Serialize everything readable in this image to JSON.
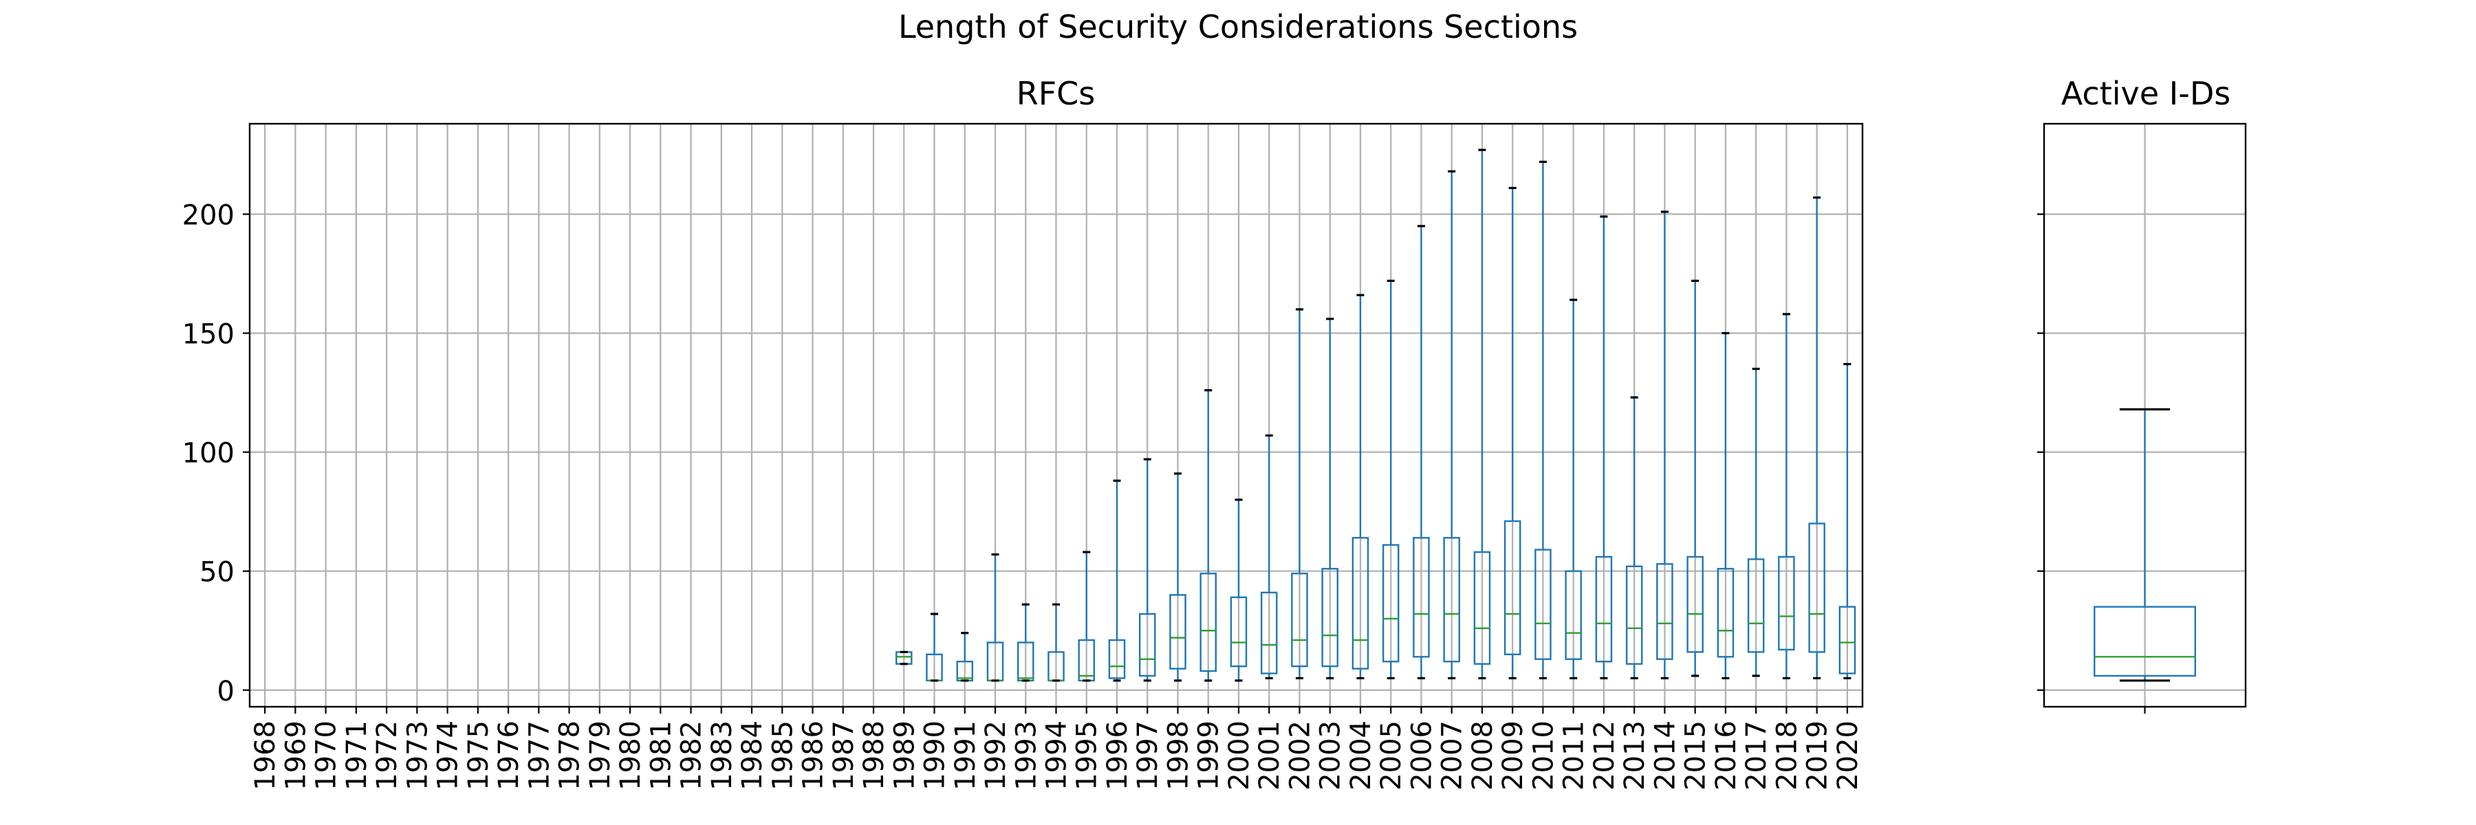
{
  "figure": {
    "suptitle": "Length of Security Considerations Sections"
  },
  "chart_data": [
    {
      "type": "boxplot",
      "title": "RFCs",
      "xlabel": "",
      "ylabel": "",
      "ylim": [
        -7,
        238
      ],
      "yticks": [
        0,
        50,
        100,
        150,
        200
      ],
      "grid": true,
      "categories": [
        "1968",
        "1969",
        "1970",
        "1971",
        "1972",
        "1973",
        "1974",
        "1975",
        "1976",
        "1977",
        "1978",
        "1979",
        "1980",
        "1981",
        "1982",
        "1983",
        "1984",
        "1985",
        "1986",
        "1987",
        "1988",
        "1989",
        "1990",
        "1991",
        "1992",
        "1993",
        "1994",
        "1995",
        "1996",
        "1997",
        "1998",
        "1999",
        "2000",
        "2001",
        "2002",
        "2003",
        "2004",
        "2005",
        "2006",
        "2007",
        "2008",
        "2009",
        "2010",
        "2011",
        "2012",
        "2013",
        "2014",
        "2015",
        "2016",
        "2017",
        "2018",
        "2019",
        "2020"
      ],
      "boxes": [
        null,
        null,
        null,
        null,
        null,
        null,
        null,
        null,
        null,
        null,
        null,
        null,
        null,
        null,
        null,
        null,
        null,
        null,
        null,
        null,
        null,
        {
          "whisker_low": 11,
          "q1": 11,
          "median": 14,
          "q3": 16,
          "whisker_high": 16
        },
        {
          "whisker_low": 4,
          "q1": 4,
          "median": 4,
          "q3": 15,
          "whisker_high": 32
        },
        {
          "whisker_low": 4,
          "q1": 4,
          "median": 5,
          "q3": 12,
          "whisker_high": 24
        },
        {
          "whisker_low": 4,
          "q1": 4,
          "median": 4,
          "q3": 20,
          "whisker_high": 57
        },
        {
          "whisker_low": 4,
          "q1": 4,
          "median": 5,
          "q3": 20,
          "whisker_high": 36
        },
        {
          "whisker_low": 4,
          "q1": 4,
          "median": 4,
          "q3": 16,
          "whisker_high": 36
        },
        {
          "whisker_low": 4,
          "q1": 4,
          "median": 6,
          "q3": 21,
          "whisker_high": 58
        },
        {
          "whisker_low": 4,
          "q1": 5,
          "median": 10,
          "q3": 21,
          "whisker_high": 88
        },
        {
          "whisker_low": 4,
          "q1": 6,
          "median": 13,
          "q3": 32,
          "whisker_high": 97
        },
        {
          "whisker_low": 4,
          "q1": 9,
          "median": 22,
          "q3": 40,
          "whisker_high": 91
        },
        {
          "whisker_low": 4,
          "q1": 8,
          "median": 25,
          "q3": 49,
          "whisker_high": 126
        },
        {
          "whisker_low": 4,
          "q1": 10,
          "median": 20,
          "q3": 39,
          "whisker_high": 80
        },
        {
          "whisker_low": 5,
          "q1": 7,
          "median": 19,
          "q3": 41,
          "whisker_high": 107
        },
        {
          "whisker_low": 5,
          "q1": 10,
          "median": 21,
          "q3": 49,
          "whisker_high": 160
        },
        {
          "whisker_low": 5,
          "q1": 10,
          "median": 23,
          "q3": 51,
          "whisker_high": 156
        },
        {
          "whisker_low": 5,
          "q1": 9,
          "median": 21,
          "q3": 64,
          "whisker_high": 166
        },
        {
          "whisker_low": 5,
          "q1": 12,
          "median": 30,
          "q3": 61,
          "whisker_high": 172
        },
        {
          "whisker_low": 5,
          "q1": 14,
          "median": 32,
          "q3": 64,
          "whisker_high": 195
        },
        {
          "whisker_low": 5,
          "q1": 12,
          "median": 32,
          "q3": 64,
          "whisker_high": 218
        },
        {
          "whisker_low": 5,
          "q1": 11,
          "median": 26,
          "q3": 58,
          "whisker_high": 227
        },
        {
          "whisker_low": 5,
          "q1": 15,
          "median": 32,
          "q3": 71,
          "whisker_high": 211
        },
        {
          "whisker_low": 5,
          "q1": 13,
          "median": 28,
          "q3": 59,
          "whisker_high": 222
        },
        {
          "whisker_low": 5,
          "q1": 13,
          "median": 24,
          "q3": 50,
          "whisker_high": 164
        },
        {
          "whisker_low": 5,
          "q1": 12,
          "median": 28,
          "q3": 56,
          "whisker_high": 199
        },
        {
          "whisker_low": 5,
          "q1": 11,
          "median": 26,
          "q3": 52,
          "whisker_high": 123
        },
        {
          "whisker_low": 5,
          "q1": 13,
          "median": 28,
          "q3": 53,
          "whisker_high": 201
        },
        {
          "whisker_low": 6,
          "q1": 16,
          "median": 32,
          "q3": 56,
          "whisker_high": 172
        },
        {
          "whisker_low": 5,
          "q1": 14,
          "median": 25,
          "q3": 51,
          "whisker_high": 150
        },
        {
          "whisker_low": 6,
          "q1": 16,
          "median": 28,
          "q3": 55,
          "whisker_high": 135
        },
        {
          "whisker_low": 5,
          "q1": 17,
          "median": 31,
          "q3": 56,
          "whisker_high": 158
        },
        {
          "whisker_low": 5,
          "q1": 16,
          "median": 32,
          "q3": 70,
          "whisker_high": 207
        },
        {
          "whisker_low": 5,
          "q1": 7,
          "median": 20,
          "q3": 35,
          "whisker_high": 137
        }
      ]
    },
    {
      "type": "boxplot",
      "title": "Active I-Ds",
      "xlabel": "",
      "ylabel": "",
      "ylim": [
        -7,
        238
      ],
      "yticks": [
        0,
        50,
        100,
        150,
        200
      ],
      "ytick_labels_shown": false,
      "grid": true,
      "categories": [
        ""
      ],
      "boxes": [
        {
          "whisker_low": 4,
          "q1": 6,
          "median": 14,
          "q3": 35,
          "whisker_high": 118
        }
      ]
    }
  ],
  "colors": {
    "box": "#1f77b4",
    "median": "#2ca02c",
    "grid": "#b0b0b0",
    "axes": "#000000"
  }
}
